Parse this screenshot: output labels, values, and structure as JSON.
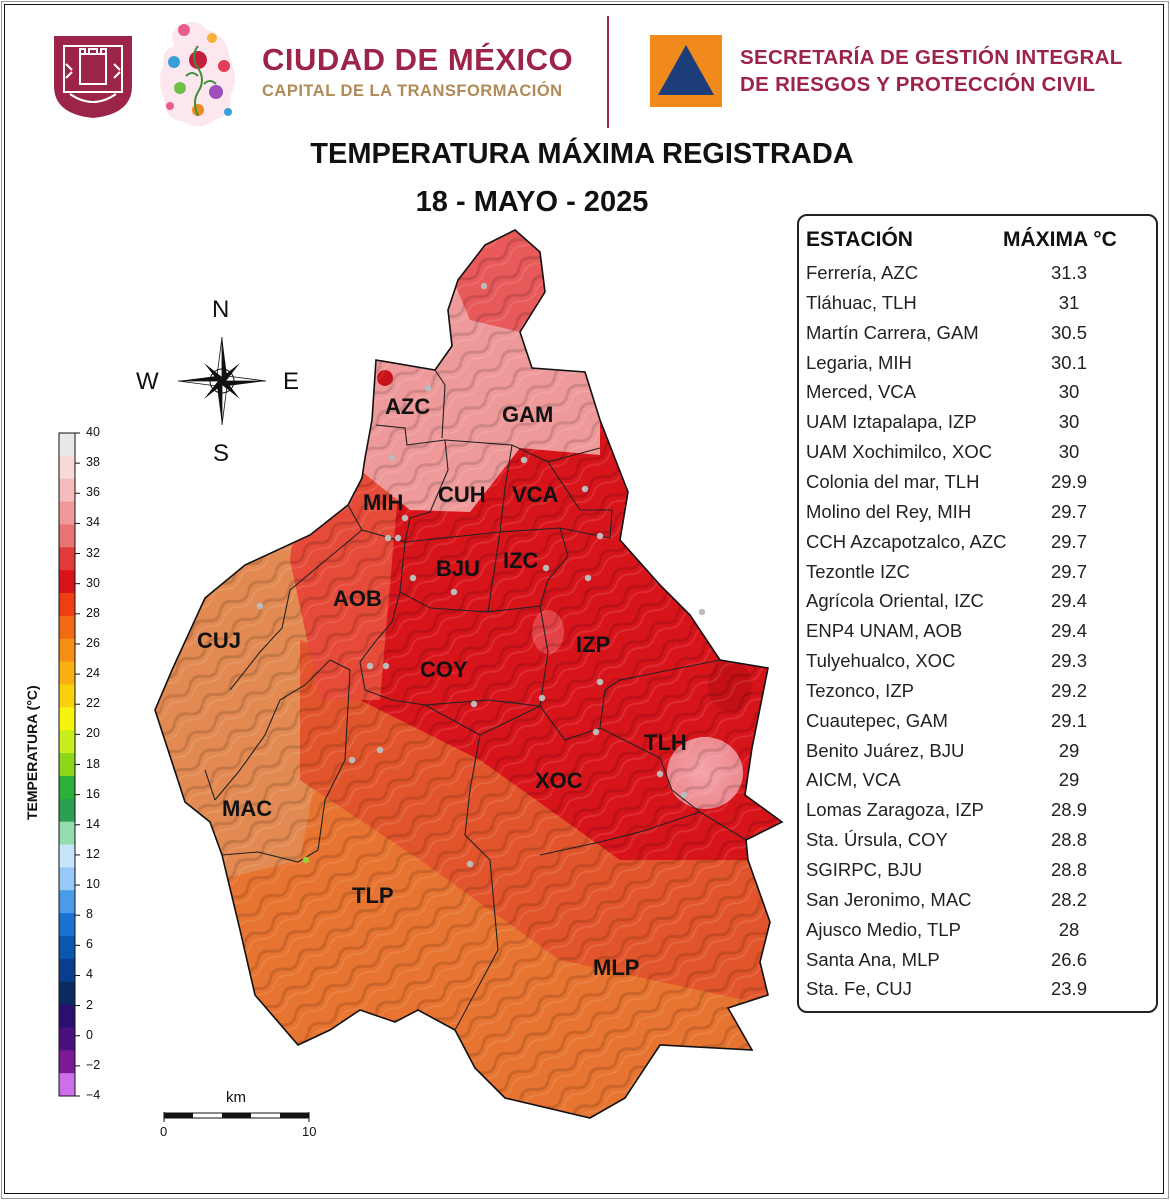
{
  "header": {
    "org_name": "CIUDAD DE MÉXICO",
    "org_subtitle": "CAPITAL DE LA TRANSFORMACIÓN",
    "agency_line1": "SECRETARÍA DE GESTIÓN INTEGRAL",
    "agency_line2": "DE RIESGOS Y PROTECCIÓN CIVIL",
    "brand_color": "#9c2448",
    "accent_color": "#b18a58",
    "agency_logo_bg": "#f08a1c",
    "agency_logo_triangle": "#1d3d7a"
  },
  "title": {
    "line1": "TEMPERATURA MÁXIMA REGISTRADA",
    "line2": "18 - MAYO - 2025"
  },
  "table": {
    "col_station": "ESTACIÓN",
    "col_max": "MÁXIMA °C",
    "rows": [
      {
        "station": "Ferrería, AZC",
        "max": "31.3"
      },
      {
        "station": "Tláhuac, TLH",
        "max": "31"
      },
      {
        "station": "Martín Carrera, GAM",
        "max": "30.5"
      },
      {
        "station": "Legaria, MIH",
        "max": "30.1"
      },
      {
        "station": "Merced, VCA",
        "max": "30"
      },
      {
        "station": "UAM Iztapalapa, IZP",
        "max": "30"
      },
      {
        "station": "UAM Xochimilco, XOC",
        "max": "30"
      },
      {
        "station": "Colonia del mar, TLH",
        "max": "29.9"
      },
      {
        "station": "Molino del Rey, MIH",
        "max": "29.7"
      },
      {
        "station": "CCH Azcapotzalco, AZC",
        "max": "29.7"
      },
      {
        "station": "Tezontle IZC",
        "max": "29.7"
      },
      {
        "station": "Agrícola Oriental, IZC",
        "max": "29.4"
      },
      {
        "station": "ENP4 UNAM,  AOB",
        "max": "29.4"
      },
      {
        "station": "Tulyehualco, XOC",
        "max": "29.3"
      },
      {
        "station": "Tezonco, IZP",
        "max": "29.2"
      },
      {
        "station": "Cuautepec, GAM",
        "max": "29.1"
      },
      {
        "station": "Benito Juárez, BJU",
        "max": "29"
      },
      {
        "station": "AICM, VCA",
        "max": "29"
      },
      {
        "station": "Lomas Zaragoza, IZP",
        "max": "28.9"
      },
      {
        "station": "Sta. Úrsula, COY",
        "max": "28.8"
      },
      {
        "station": "SGIRPC, BJU",
        "max": "28.8"
      },
      {
        "station": "San Jeronimo, MAC",
        "max": "28.2"
      },
      {
        "station": "Ajusco Medio, TLP",
        "max": "28"
      },
      {
        "station": "Santa Ana, MLP",
        "max": "26.6"
      },
      {
        "station": "Sta. Fe, CUJ",
        "max": "23.9"
      }
    ]
  },
  "legend": {
    "title": "TEMPERATURA (°C)",
    "ticks": [
      "40",
      "38",
      "36",
      "34",
      "32",
      "30",
      "28",
      "26",
      "24",
      "22",
      "20",
      "18",
      "16",
      "14",
      "12",
      "10",
      "8",
      "6",
      "4",
      "2",
      "0",
      "−2",
      "−4"
    ],
    "colors": [
      "#e8e8e8",
      "#f8d8d8",
      "#f4bcbc",
      "#ee9a9a",
      "#e87474",
      "#e23a3a",
      "#d8141b",
      "#ee3e14",
      "#f26a12",
      "#f58e14",
      "#f8b012",
      "#fad10e",
      "#f7f20e",
      "#c8ef1c",
      "#8cd61c",
      "#2cb03a",
      "#2aa050",
      "#92dcae",
      "#c6e4fa",
      "#98c8f5",
      "#4a9ceb",
      "#1c72d0",
      "#0b57ad",
      "#0a3e8c",
      "#0a2a62",
      "#2a0f6e",
      "#4c0f80",
      "#7a1a95",
      "#cc6fe8"
    ]
  },
  "compass": {
    "n": "N",
    "s": "S",
    "e": "E",
    "w": "W"
  },
  "scale_bar": {
    "unit": "km",
    "start": "0",
    "end": "10"
  },
  "districts": [
    "AZC",
    "GAM",
    "MIH",
    "CUH",
    "VCA",
    "IZC",
    "BJU",
    "AOB",
    "CUJ",
    "COY",
    "IZP",
    "TLH",
    "XOC",
    "MAC",
    "TLP",
    "MLP"
  ],
  "map_colors": {
    "hot_30": "#d8141b",
    "warm_32": "#e85a5a",
    "pink_34": "#ee9a9a",
    "orange_26": "#e8502a",
    "orange_24": "#e8742c",
    "light_orange": "#ec8a4a"
  }
}
